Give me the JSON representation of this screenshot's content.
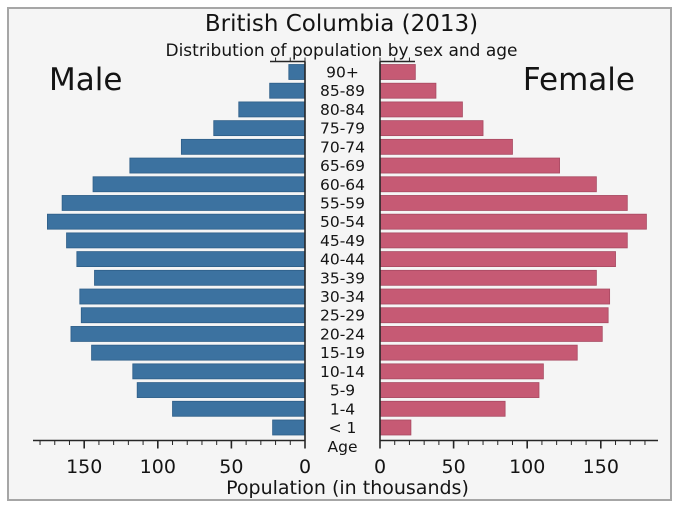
{
  "figure": {
    "title": "British Columbia (2013)",
    "subtitle": "Distribution of population by sex and age",
    "left_group_label": "Male",
    "right_group_label": "Female",
    "xlabel": "Population (in thousands)",
    "age_axis_label": "Age"
  },
  "colors": {
    "male_bar": "#3c72a0",
    "male_bar_edge": "#2e5e88",
    "female_bar": "#c65a74",
    "female_bar_edge": "#a84a62",
    "axis": "#262626",
    "text": "#141414",
    "background": "#f5f5f5",
    "frame_border": "#a6a6a6"
  },
  "chart_data": {
    "type": "bar",
    "variant": "population-pyramid",
    "title": "British Columbia (2013)",
    "subtitle": "Distribution of population by sex and age",
    "xlabel": "Population (in thousands)",
    "center_axis_label": "Age",
    "unit": "thousands of people",
    "legend_position": "inside-top (Male left, Female right)",
    "grid": false,
    "age_groups": [
      "90+",
      "85-89",
      "80-84",
      "75-79",
      "70-74",
      "65-69",
      "60-64",
      "55-59",
      "50-54",
      "45-49",
      "40-44",
      "35-39",
      "30-34",
      "25-29",
      "20-24",
      "15-19",
      "10-14",
      "5-9",
      "1-4",
      "< 1"
    ],
    "series": [
      {
        "name": "Male",
        "side": "left",
        "color": "#3c72a0",
        "values": [
          11,
          24,
          45,
          62,
          84,
          119,
          144,
          165,
          175,
          162,
          155,
          143,
          153,
          152,
          159,
          145,
          117,
          114,
          90,
          22
        ]
      },
      {
        "name": "Female",
        "side": "right",
        "color": "#c65a74",
        "values": [
          24,
          38,
          56,
          70,
          90,
          122,
          147,
          168,
          181,
          168,
          160,
          147,
          156,
          155,
          151,
          134,
          111,
          108,
          85,
          21
        ]
      }
    ],
    "x_axis": {
      "tick_values": [
        0,
        50,
        100,
        150
      ],
      "minor_tick_step": 10,
      "max": 185,
      "mirrored": true
    }
  }
}
